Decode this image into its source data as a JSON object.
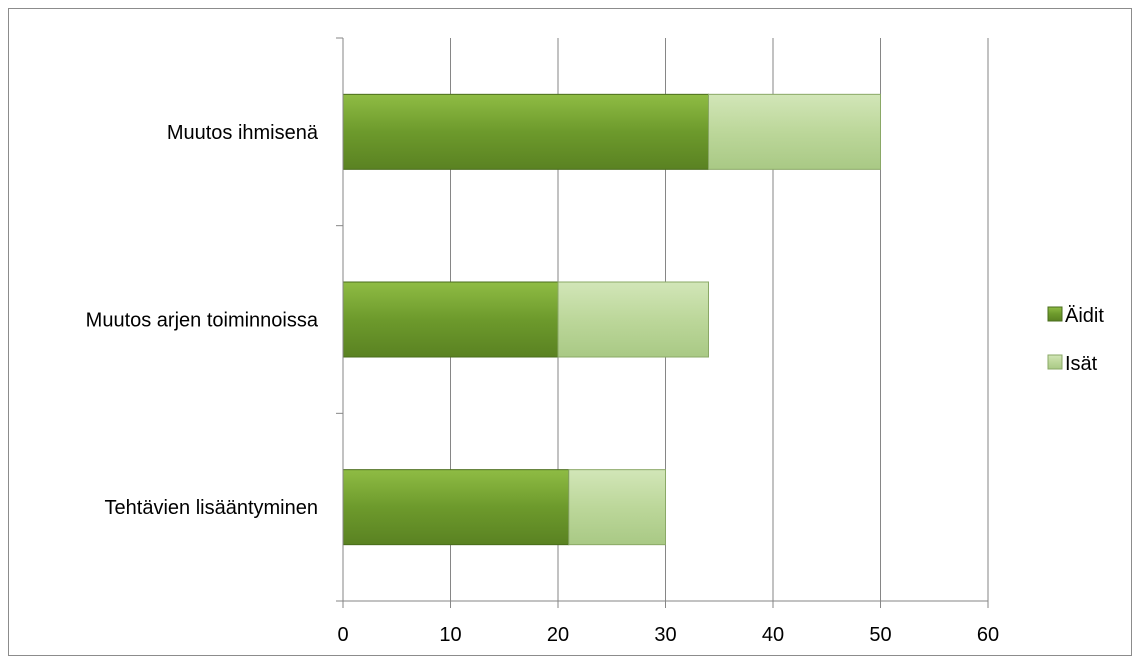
{
  "chart_data": {
    "type": "bar",
    "orientation": "horizontal",
    "stacked": true,
    "categories": [
      "Muutos ihmisenä",
      "Muutos arjen toiminnoissa",
      "Tehtävien lisääntyminen"
    ],
    "series": [
      {
        "name": "Äidit",
        "values": [
          34,
          20,
          21
        ],
        "color": "#6f9a2e"
      },
      {
        "name": "Isät",
        "values": [
          16,
          14,
          9
        ],
        "color": "#bcd79a"
      }
    ],
    "xlim": [
      0,
      60
    ],
    "xticks": [
      "0",
      "10",
      "20",
      "30",
      "40",
      "50",
      "60"
    ],
    "grid": true,
    "legend_position": "right"
  }
}
